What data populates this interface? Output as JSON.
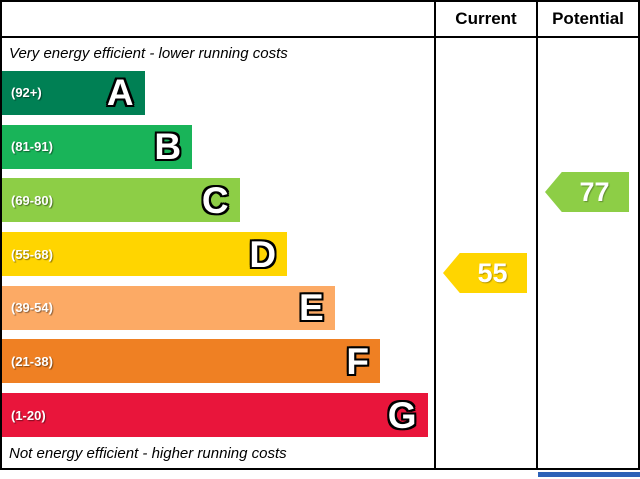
{
  "header": {
    "current": "Current",
    "potential": "Potential"
  },
  "captions": {
    "top": "Very energy efficient - lower running costs",
    "bottom": "Not energy efficient - higher running costs"
  },
  "bands": [
    {
      "letter": "A",
      "range": "(92+)",
      "color": "#008054"
    },
    {
      "letter": "B",
      "range": "(81-91)",
      "color": "#19b459"
    },
    {
      "letter": "C",
      "range": "(69-80)",
      "color": "#8dce46"
    },
    {
      "letter": "D",
      "range": "(55-68)",
      "color": "#ffd500"
    },
    {
      "letter": "E",
      "range": "(39-54)",
      "color": "#fcaa65"
    },
    {
      "letter": "F",
      "range": "(21-38)",
      "color": "#ef8023"
    },
    {
      "letter": "G",
      "range": "(1-20)",
      "color": "#e9153b"
    }
  ],
  "ratings": {
    "current": {
      "value": "55",
      "band": "D",
      "color": "#ffd500"
    },
    "potential": {
      "value": "77",
      "band": "C",
      "color": "#8dce46"
    }
  },
  "accent_blue": "#2d62b8",
  "chart_data": {
    "type": "bar",
    "categories": [
      "A",
      "B",
      "C",
      "D",
      "E",
      "F",
      "G"
    ],
    "band_ranges": [
      "92+",
      "81-91",
      "69-80",
      "55-68",
      "39-54",
      "21-38",
      "1-20"
    ],
    "band_colors": [
      "#008054",
      "#19b459",
      "#8dce46",
      "#ffd500",
      "#fcaa65",
      "#ef8023",
      "#e9153b"
    ],
    "columns": [
      "Current",
      "Potential"
    ],
    "current_value": 55,
    "current_band": "D",
    "potential_value": 77,
    "potential_band": "C",
    "scale_min": 1,
    "scale_max": 100,
    "top_caption": "Very energy efficient - lower running costs",
    "bottom_caption": "Not energy efficient - higher running costs"
  }
}
